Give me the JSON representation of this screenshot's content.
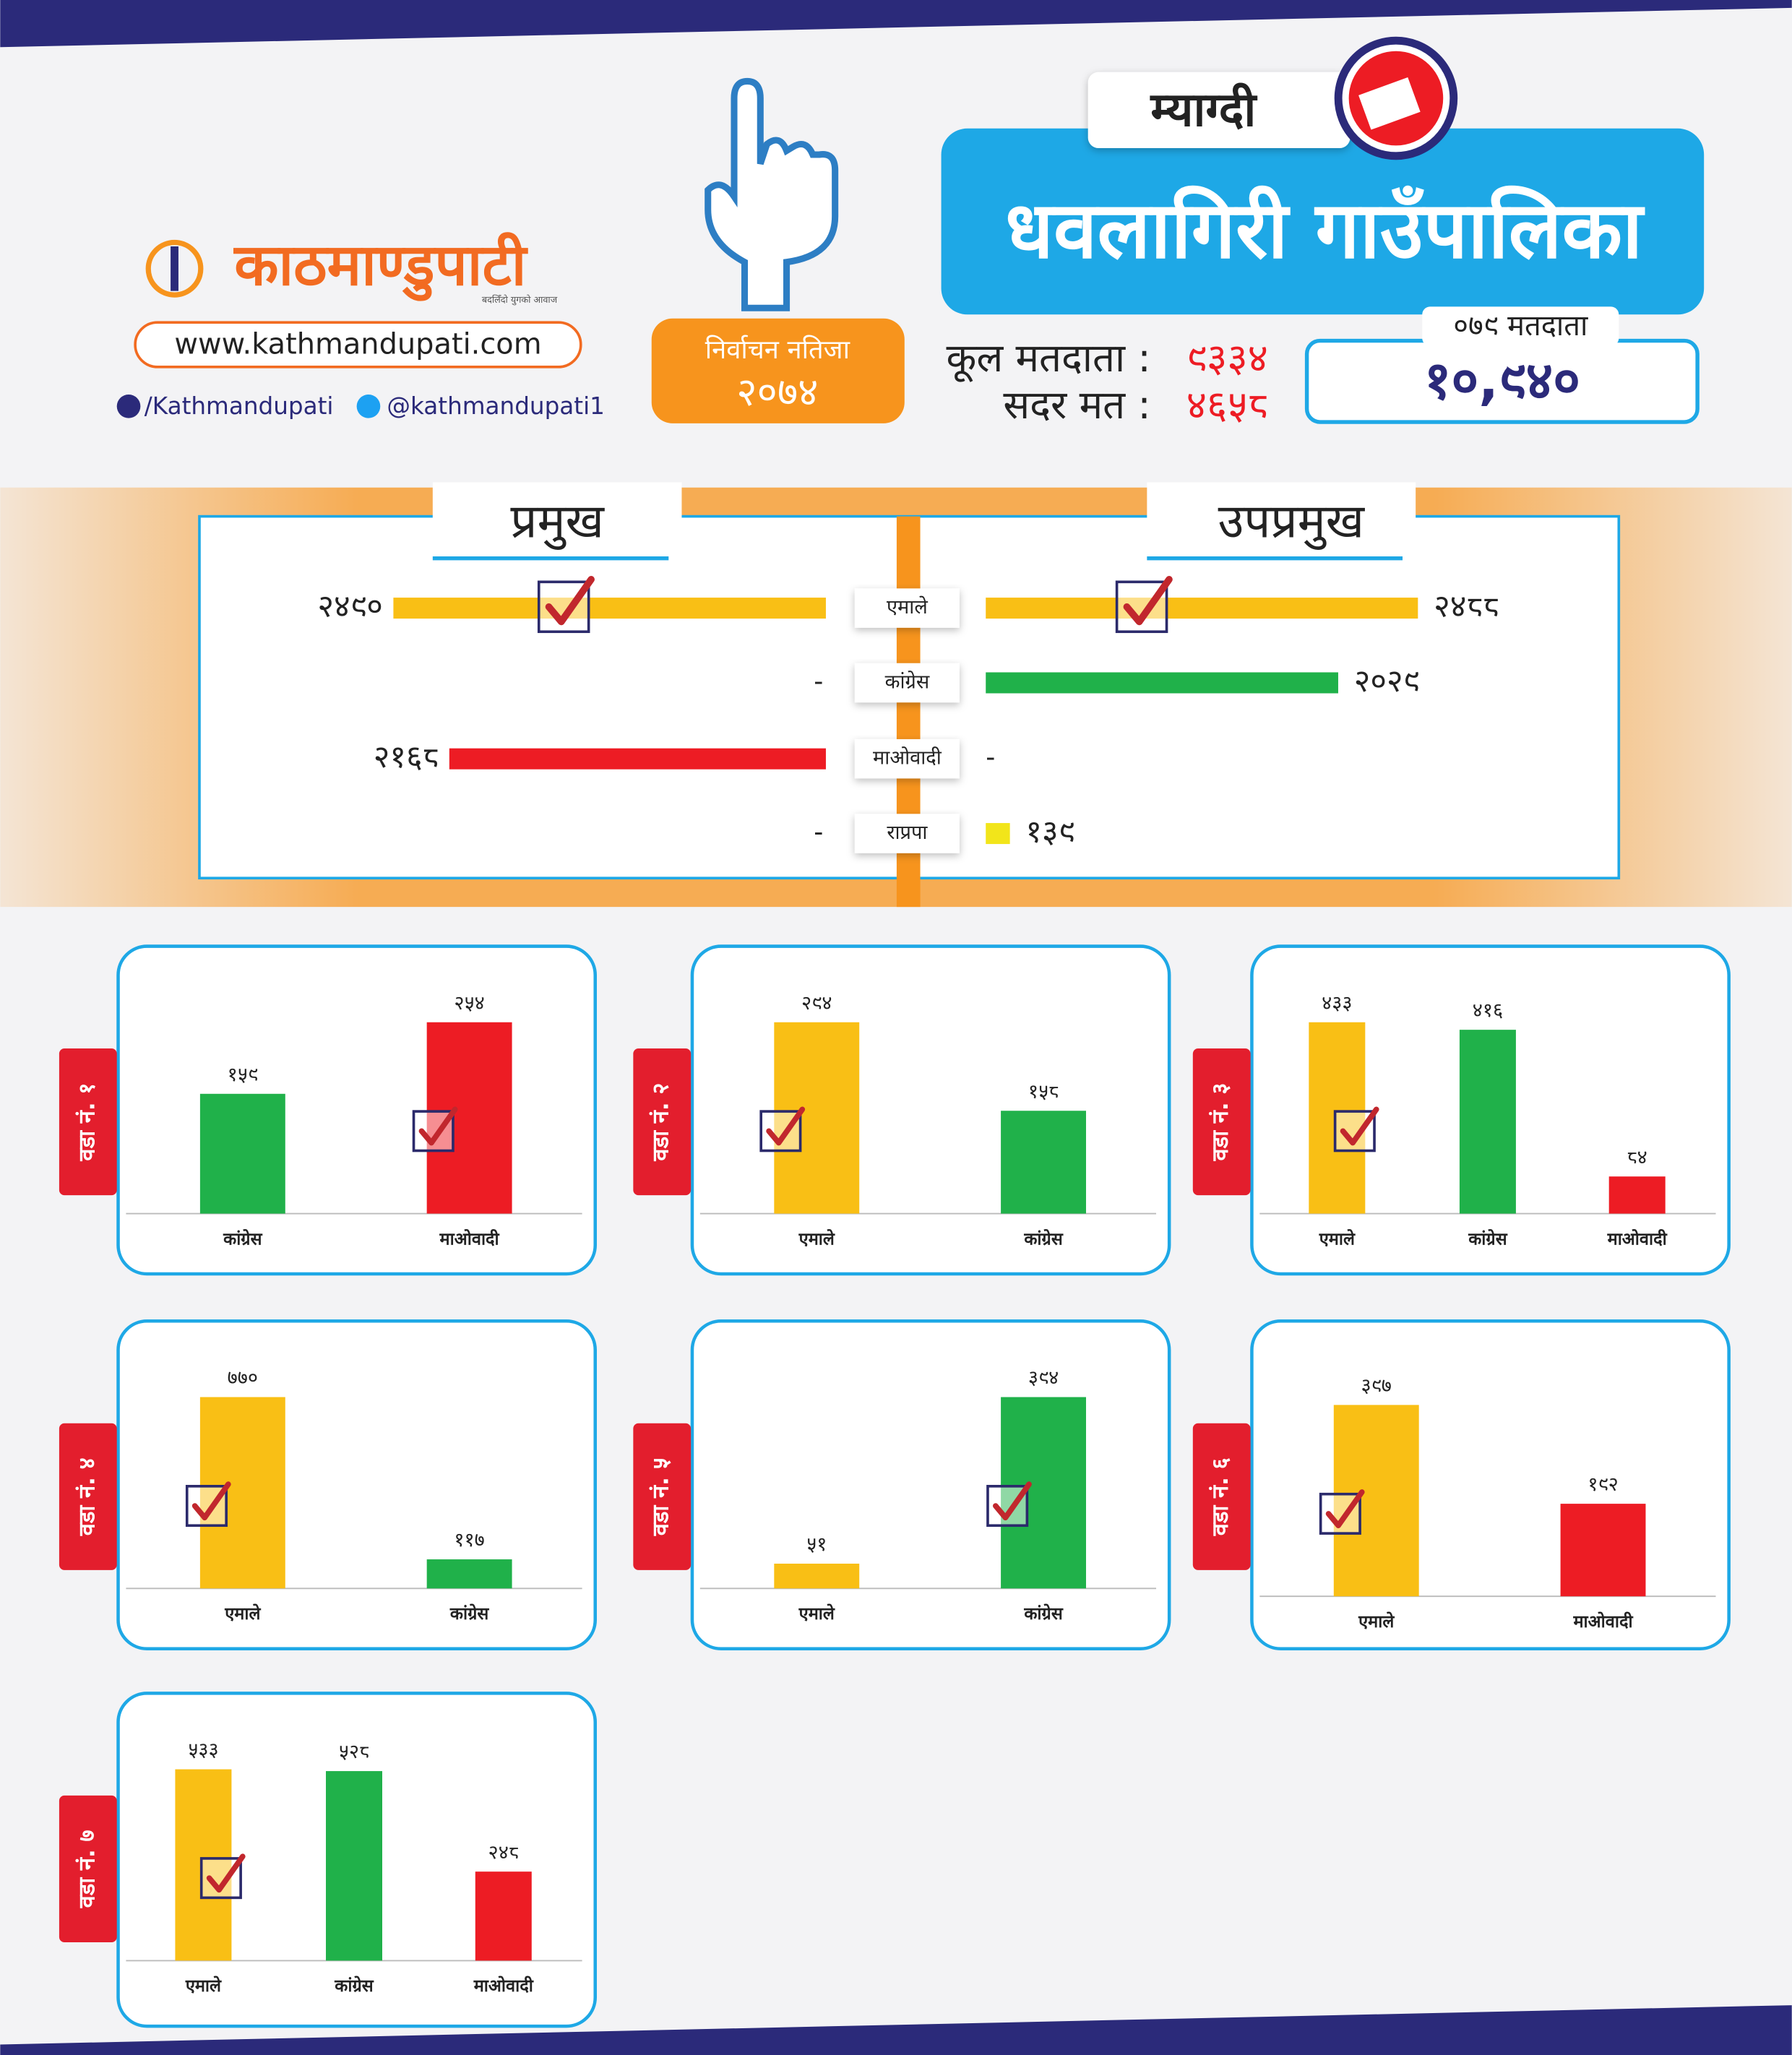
{
  "header": {
    "logo_text": "काठमाण्डुपाटी",
    "tagline": "बदलिँदो युगको आवाज",
    "website": "www.kathmandupati.com",
    "facebook": "/Kathmandupati",
    "twitter": "@kathmandupati1",
    "badge_title": "निर्वाचन नतिजा",
    "badge_year": "२०७४",
    "district": "म्याग्दी",
    "municipality": "धवलागिरी गाउँपालिका",
    "total_voters_label": "कूल मतदाता :",
    "total_voters": "९३३४",
    "valid_votes_label": "सदर मत :",
    "valid_votes": "४६५८",
    "voters_079_label": "०७९ मतदाता",
    "voters_079": "१०,९४०"
  },
  "chart_data": [
    {
      "type": "diverging-bar",
      "categories": [
        "एमाले",
        "कांग्रेस",
        "माओवादी",
        "राप्रपा"
      ],
      "colors": [
        "#f9bf15",
        "#20b14a",
        "#ed1c24",
        "#f2e51a"
      ],
      "series": [
        {
          "name": "प्रमुख",
          "values": [
            2490,
            null,
            2168,
            null
          ],
          "value_labels": [
            "२४९०",
            "-",
            "२१६८",
            "-"
          ],
          "checked": 0
        },
        {
          "name": "उपप्रमुख",
          "values": [
            2488,
            2029,
            null,
            139
          ],
          "value_labels": [
            "२४८८",
            "२०२९",
            "-",
            "१३९"
          ],
          "checked": 0
        }
      ]
    },
    {
      "type": "bar",
      "title": "वडा नं. १",
      "categories": [
        "कांग्रेस",
        "माओवादी"
      ],
      "values": [
        159,
        254
      ],
      "value_labels": [
        "१५९",
        "२५४"
      ],
      "colors": [
        "#20b14a",
        "#ed1c24"
      ],
      "checked": 1
    },
    {
      "type": "bar",
      "title": "वडा नं. २",
      "categories": [
        "एमाले",
        "कांग्रेस"
      ],
      "values": [
        294,
        158
      ],
      "value_labels": [
        "२९४",
        "१५८"
      ],
      "colors": [
        "#f9bf15",
        "#20b14a"
      ],
      "checked": 0
    },
    {
      "type": "bar",
      "title": "वडा नं. ३",
      "categories": [
        "एमाले",
        "कांग्रेस",
        "माओवादी"
      ],
      "values": [
        433,
        416,
        84
      ],
      "value_labels": [
        "४३३",
        "४१६",
        "८४"
      ],
      "colors": [
        "#f9bf15",
        "#20b14a",
        "#ed1c24"
      ],
      "checked": 0
    },
    {
      "type": "bar",
      "title": "वडा नं. ४",
      "categories": [
        "एमाले",
        "कांग्रेस"
      ],
      "values": [
        770,
        117
      ],
      "value_labels": [
        "७७०",
        "११७"
      ],
      "colors": [
        "#f9bf15",
        "#20b14a"
      ],
      "checked": 0
    },
    {
      "type": "bar",
      "title": "वडा नं. ५",
      "categories": [
        "एमाले",
        "कांग्रेस"
      ],
      "values": [
        51,
        394
      ],
      "value_labels": [
        "५१",
        "३९४"
      ],
      "colors": [
        "#f9bf15",
        "#20b14a"
      ],
      "checked": 1
    },
    {
      "type": "bar",
      "title": "वडा नं. ६",
      "categories": [
        "एमाले",
        "माओवादी"
      ],
      "values": [
        397,
        192
      ],
      "value_labels": [
        "३९७",
        "१९२"
      ],
      "colors": [
        "#f9bf15",
        "#ed1c24"
      ],
      "checked": 0
    },
    {
      "type": "bar",
      "title": "वडा नं. ७",
      "categories": [
        "एमाले",
        "कांग्रेस",
        "माओवादी"
      ],
      "values": [
        533,
        528,
        248
      ],
      "value_labels": [
        "५३३",
        "५२८",
        "२४८"
      ],
      "colors": [
        "#f9bf15",
        "#20b14a",
        "#ed1c24"
      ],
      "checked": 0
    }
  ]
}
